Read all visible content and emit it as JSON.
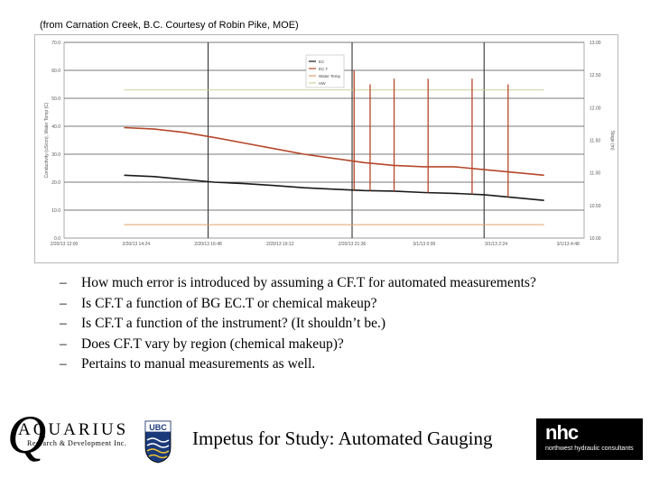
{
  "caption": "(from Carnation Creek, B.C. Courtesy of Robin Pike, MOE)",
  "bullets": [
    {
      "dash": "–",
      "text": "How much error is introduced by assuming a CF.T for automated measurements?"
    },
    {
      "dash": "–",
      "text": "Is CF.T a function of BG EC.T or chemical makeup?"
    },
    {
      "dash": "–",
      "text": "Is CF.T a function of the instrument? (It shouldn’t be.)"
    },
    {
      "dash": "–",
      "text": "Does CF.T vary by region (chemical makeup)?"
    },
    {
      "dash": "–",
      "text": "Pertains to manual measurements as well."
    }
  ],
  "footer": {
    "title": "Impetus for Study: Automated Gauging"
  },
  "logos": {
    "aquarius_name": "AQUARIUS",
    "aquarius_sub": "Research & Development Inc.",
    "ubc": "UBC",
    "nhc": "nhc",
    "nhc_sub": "northwest hydraulic consultants"
  },
  "chart_data": {
    "type": "line",
    "title": "",
    "xlabel": "",
    "ylabel": "Conductivity (uS/cm), Water Temp (C)",
    "y2label": "Stage (m)",
    "ylim": [
      0,
      70
    ],
    "y2lim": [
      10.0,
      13.0
    ],
    "yticks": [
      "0.0",
      "10.0",
      "20.0",
      "30.0",
      "40.0",
      "50.0",
      "60.0",
      "70.0"
    ],
    "y2ticks": [
      "10.00",
      "10.50",
      "11.00",
      "11.50",
      "12.00",
      "12.50",
      "13.00"
    ],
    "xlim": [
      0,
      2.6
    ],
    "xticks": [
      {
        "x": 0.0,
        "label": "2/20/13 12:00"
      },
      {
        "x": 0.36,
        "label": "2/20/13 14:24"
      },
      {
        "x": 0.72,
        "label": "2/20/13 16:48"
      },
      {
        "x": 1.08,
        "label": "2/20/13 19:12"
      },
      {
        "x": 1.44,
        "label": "2/20/13 21:36"
      },
      {
        "x": 1.8,
        "label": "3/1/13 0:00"
      },
      {
        "x": 2.16,
        "label": "3/1/13 2:24"
      },
      {
        "x": 2.52,
        "label": "3/1/13 4:48"
      }
    ],
    "legend": [
      "EC",
      "EC.T",
      "Water Temp",
      "HW"
    ],
    "legend_position": "top-center",
    "grid": true,
    "series": [
      {
        "name": "EC.T",
        "color": "#b5472a",
        "x": [
          0.3,
          0.45,
          0.6,
          0.75,
          0.9,
          1.05,
          1.2,
          1.35,
          1.5,
          1.65,
          1.8,
          1.95,
          2.1,
          2.25,
          2.4
        ],
        "values": [
          39.5,
          39.0,
          37.8,
          36.0,
          34.0,
          32.0,
          30.0,
          28.5,
          27.0,
          26.0,
          25.5,
          25.5,
          24.5,
          23.5,
          22.5
        ]
      },
      {
        "name": "EC",
        "color": "#1a1a1a",
        "x": [
          0.3,
          0.45,
          0.6,
          0.75,
          0.9,
          1.05,
          1.2,
          1.35,
          1.5,
          1.65,
          1.8,
          1.95,
          2.1,
          2.25,
          2.4
        ],
        "values": [
          22.5,
          22.0,
          21.0,
          20.0,
          19.5,
          18.8,
          18.0,
          17.5,
          17.0,
          16.8,
          16.3,
          16.0,
          15.5,
          14.5,
          13.5
        ]
      },
      {
        "name": "Water Temp",
        "color": "#e0a06a",
        "x": [
          0.3,
          2.4
        ],
        "values": [
          4.8,
          4.8
        ]
      },
      {
        "name": "HW",
        "color": "#c7d39a",
        "x": [
          0.3,
          2.4
        ],
        "values": [
          53.0,
          53.0
        ]
      }
    ],
    "spikes": [
      {
        "x": 1.45,
        "top": 60.0,
        "color": "#b5472a"
      },
      {
        "x": 1.53,
        "top": 55.0,
        "color": "#b5472a"
      },
      {
        "x": 1.65,
        "top": 57.0,
        "color": "#b5472a"
      },
      {
        "x": 1.82,
        "top": 57.0,
        "color": "#b5472a"
      },
      {
        "x": 2.04,
        "top": 57.0,
        "color": "#b5472a"
      },
      {
        "x": 2.22,
        "top": 55.0,
        "color": "#b5472a"
      }
    ],
    "vlines": [
      0.72,
      1.44,
      2.1
    ]
  }
}
